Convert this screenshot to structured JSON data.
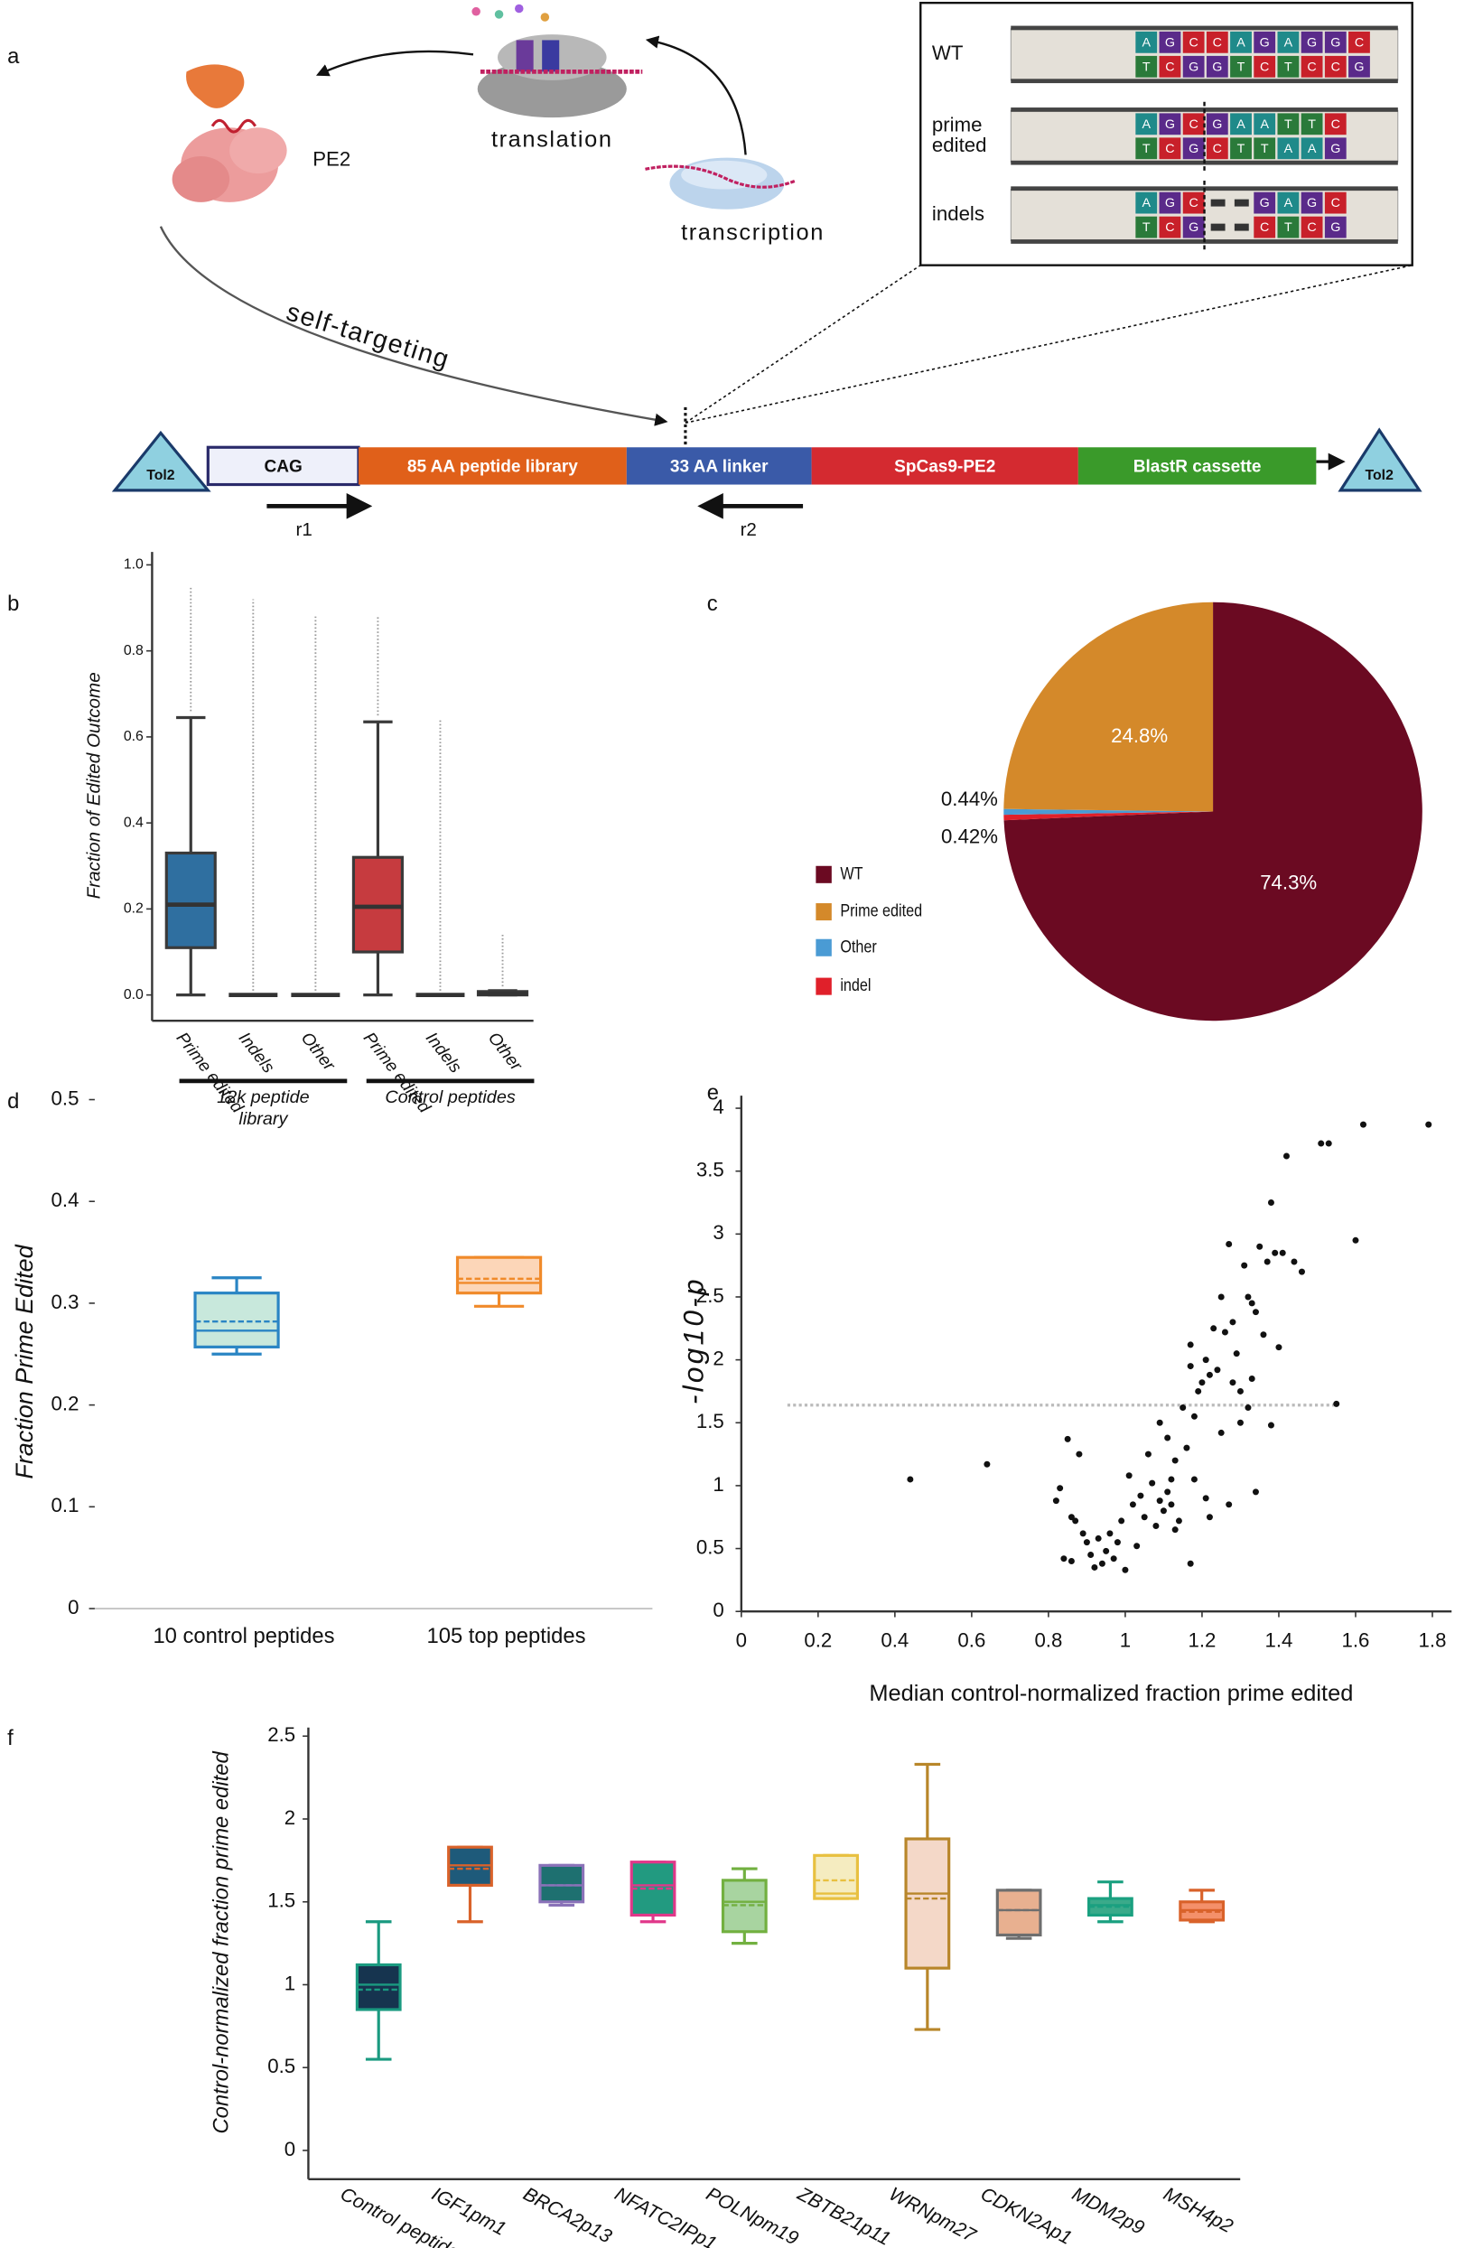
{
  "panel_labels": [
    "a",
    "b",
    "c",
    "d",
    "e",
    "f"
  ],
  "diagram": {
    "translation": "translation",
    "transcription": "transcription",
    "pe2": "PE2",
    "self_targeting": "self-targeting",
    "inset": {
      "base_colors": {
        "A": "#1f8a8a",
        "G": "#5a2a8a",
        "C": "#c8202a",
        "T": "#2a7a3a"
      },
      "rows": [
        {
          "label": [
            "WT"
          ],
          "top": [
            "A",
            "G",
            "C",
            "C",
            "A",
            "G",
            "A",
            "G",
            "G",
            "C"
          ],
          "bottom": [
            "T",
            "C",
            "G",
            "G",
            "T",
            "C",
            "T",
            "C",
            "C",
            "G"
          ]
        },
        {
          "label": [
            "prime",
            "edited"
          ],
          "top": [
            "A",
            "G",
            "C",
            "G",
            "A",
            "A",
            "T",
            "T",
            "C"
          ],
          "bottom": [
            "T",
            "C",
            "G",
            "C",
            "T",
            "T",
            "A",
            "A",
            "G"
          ]
        },
        {
          "label": [
            "indels"
          ],
          "top": [
            "A",
            "G",
            "C",
            null,
            null,
            "G",
            "A",
            "G",
            "C"
          ],
          "bottom": [
            "T",
            "C",
            "G",
            null,
            null,
            "C",
            "T",
            "C",
            "G"
          ]
        }
      ]
    },
    "construct": {
      "left_end": "Tol2",
      "right_end": "Tol2",
      "segments": [
        {
          "label": "CAG",
          "color": "#eef0fa"
        },
        {
          "label": "85 AA peptide library",
          "color": "#e0601a"
        },
        {
          "label": "33 AA linker",
          "color": "#3a5aa8"
        },
        {
          "label": "SpCas9-PE2",
          "color": "#d42a30"
        },
        {
          "label": "BlastR cassette",
          "color": "#3a9a2a"
        }
      ],
      "primers": [
        "r1",
        "r2"
      ]
    }
  },
  "chart_data": [
    {
      "type": "box",
      "y_label": "Fraction of Edited Outcome",
      "categories": [
        "Prime edited",
        "Indels",
        "Other",
        "Prime edited",
        "Indels",
        "Other"
      ],
      "group_labels": [
        [
          "12k peptide",
          "library"
        ],
        [
          "Control peptides"
        ]
      ],
      "colors": [
        "#2f6fa0",
        "#ffffff",
        "#ffffff",
        "#c63b3f",
        "#ffffff",
        "#ffffff"
      ],
      "ylim": [
        -0.06,
        1.0
      ],
      "yticks": [
        {
          "value": 0,
          "label": "0.0"
        },
        0.2,
        0.4,
        0.6,
        0.8,
        {
          "value": 1,
          "label": "1.0"
        }
      ],
      "boxes": [
        {
          "low": 0,
          "q1": 0.11,
          "median": 0.21,
          "q3": 0.33,
          "high": 0.645,
          "outliers": [
            0.66,
            0.95
          ]
        },
        {
          "low": 0,
          "q1": 0,
          "median": 0,
          "q3": 0,
          "high": 0,
          "outliers": [
            0.01,
            0.92
          ]
        },
        {
          "low": 0,
          "q1": 0,
          "median": 0,
          "q3": 0,
          "high": 0,
          "outliers": [
            0.01,
            0.88
          ]
        },
        {
          "low": 0,
          "q1": 0.1,
          "median": 0.205,
          "q3": 0.32,
          "high": 0.635,
          "outliers": [
            0.65,
            0.88
          ]
        },
        {
          "low": 0,
          "q1": 0,
          "median": 0,
          "q3": 0,
          "high": 0,
          "outliers": [
            0.01,
            0.64
          ]
        },
        {
          "low": 0,
          "q1": 0,
          "median": 0.003,
          "q3": 0.008,
          "high": 0.01,
          "outliers": [
            0.02,
            0.14
          ]
        }
      ]
    },
    {
      "type": "pie",
      "categories": [
        "WT",
        "Prime edited",
        "Other",
        "indel"
      ],
      "values": [
        74.3,
        24.8,
        0.44,
        0.42
      ],
      "value_labels": [
        "74.3%",
        "24.8%",
        "0.44%",
        "0.42%"
      ],
      "colors": [
        "#6b0a22",
        "#d4892a",
        "#4a9bd4",
        "#e0202a"
      ]
    },
    {
      "type": "box",
      "y_label": "Fraction Prime Edited",
      "categories": [
        "10 control peptides",
        "105 top peptides"
      ],
      "colors": [
        "#2a85c4",
        "#f08a2a"
      ],
      "fills": [
        "#c8e8dc",
        "#fcd6b8"
      ],
      "ylim": [
        0,
        0.5
      ],
      "yticks": [
        0,
        0.1,
        0.2,
        0.3,
        0.4,
        0.5
      ],
      "boxes": [
        {
          "low": 0.25,
          "q1": 0.257,
          "median": 0.273,
          "mean": 0.282,
          "q3": 0.31,
          "high": 0.325
        },
        {
          "low": 0.297,
          "q1": 0.31,
          "median": 0.32,
          "mean": 0.324,
          "q3": 0.345,
          "high": 0.345
        }
      ]
    },
    {
      "type": "scatter",
      "x_label": "Median control-normalized fraction prime edited",
      "y_label": "-log10-p",
      "color": "#111111",
      "xlim": [
        0,
        1.85
      ],
      "ylim": [
        0,
        4.1
      ],
      "xticks": [
        0,
        0.2,
        0.4,
        0.6,
        0.8,
        1,
        1.2,
        1.4,
        1.6,
        1.8
      ],
      "yticks": [
        0,
        0.5,
        1,
        1.5,
        2,
        2.5,
        3,
        3.5,
        4
      ],
      "hline": {
        "y": 1.64,
        "x": [
          0.12,
          1.55
        ],
        "color": "#bbbbbb"
      },
      "x": [
        0.44,
        0.64,
        0.82,
        0.83,
        0.84,
        0.86,
        0.85,
        0.86,
        0.87,
        0.88,
        0.89,
        0.9,
        0.91,
        0.92,
        0.93,
        0.94,
        0.95,
        0.96,
        0.97,
        0.98,
        0.99,
        1.0,
        1.01,
        1.02,
        1.03,
        1.04,
        1.05,
        1.06,
        1.07,
        1.08,
        1.09,
        1.1,
        1.11,
        1.12,
        1.13,
        1.14,
        1.15,
        1.16,
        1.17,
        1.17,
        1.18,
        1.19,
        1.2,
        1.21,
        1.22,
        1.23,
        1.24,
        1.25,
        1.26,
        1.27,
        1.28,
        1.29,
        1.3,
        1.31,
        1.32,
        1.33,
        1.33,
        1.34,
        1.35,
        1.36,
        1.37,
        1.38,
        1.38,
        1.39,
        1.4,
        1.41,
        1.42,
        1.44,
        1.46,
        1.51,
        1.53,
        1.55,
        1.6,
        1.62,
        1.79,
        1.22,
        1.25,
        1.3,
        1.34,
        1.13,
        1.18,
        1.21,
        1.17,
        1.27,
        1.32,
        1.28,
        1.09,
        1.11,
        1.12
      ],
      "values": [
        1.05,
        1.17,
        0.88,
        0.98,
        0.42,
        0.75,
        1.37,
        0.4,
        0.72,
        1.25,
        0.62,
        0.55,
        0.45,
        0.35,
        0.58,
        0.38,
        0.48,
        0.62,
        0.42,
        0.55,
        0.72,
        0.33,
        1.08,
        0.85,
        0.52,
        0.92,
        0.75,
        1.25,
        1.02,
        0.68,
        1.5,
        0.8,
        1.38,
        0.85,
        1.2,
        0.72,
        1.62,
        1.3,
        1.95,
        2.12,
        1.55,
        1.75,
        1.82,
        2.0,
        1.88,
        2.25,
        1.92,
        2.5,
        2.22,
        0.85,
        2.3,
        2.05,
        1.75,
        2.75,
        1.62,
        2.45,
        1.85,
        2.38,
        2.9,
        2.2,
        2.78,
        3.25,
        1.48,
        2.85,
        2.1,
        2.85,
        3.62,
        2.78,
        2.7,
        3.72,
        3.72,
        1.65,
        2.95,
        3.87,
        3.87,
        0.75,
        1.42,
        1.5,
        0.95,
        0.65,
        1.05,
        0.9,
        0.38,
        2.92,
        2.5,
        1.82,
        0.88,
        0.95,
        1.05
      ]
    },
    {
      "type": "box",
      "y_label": "Control-normalized fraction prime edited",
      "categories": [
        "Control peptides",
        "IGF1pm1",
        "BRCA2p13",
        "NFATC2IPp1",
        "POLNpm19",
        "ZBTB21p11",
        "WRNpm27",
        "CDKN2Ap1",
        "MDM2p9",
        "MSH4p2"
      ],
      "colors": [
        "#1a9a80",
        "#d9622a",
        "#8a72b8",
        "#e0388a",
        "#72b040",
        "#e8c040",
        "#b8862a",
        "#6e6e6e",
        "#1aa080",
        "#d9622a"
      ],
      "fills": [
        "#16344f",
        "#1e5a7a",
        "#1e7070",
        "#229a80",
        "#a8d4a0",
        "#f5ecc0",
        "#f4d8c8",
        "#e8b090",
        "#3aaa8a",
        "#f4906a"
      ],
      "ylim": [
        -0.17,
        2.6
      ],
      "yticks": [
        0,
        0.5,
        1,
        1.5,
        2,
        2.5
      ],
      "boxes": [
        {
          "low": 0.55,
          "q1": 0.85,
          "median": 1.0,
          "mean": 0.97,
          "q3": 1.12,
          "high": 1.38
        },
        {
          "low": 1.38,
          "q1": 1.6,
          "median": 1.72,
          "mean": 1.7,
          "q3": 1.83,
          "high": 1.83
        },
        {
          "low": 1.48,
          "q1": 1.5,
          "median": 1.6,
          "mean": 1.6,
          "q3": 1.72,
          "high": 1.72
        },
        {
          "low": 1.38,
          "q1": 1.42,
          "median": 1.6,
          "mean": 1.58,
          "q3": 1.74,
          "high": 1.74
        },
        {
          "low": 1.25,
          "q1": 1.32,
          "median": 1.5,
          "mean": 1.48,
          "q3": 1.63,
          "high": 1.7
        },
        {
          "low": 1.52,
          "q1": 1.52,
          "median": 1.55,
          "mean": 1.63,
          "q3": 1.78,
          "high": 1.78
        },
        {
          "low": 0.73,
          "q1": 1.1,
          "median": 1.55,
          "mean": 1.52,
          "q3": 1.88,
          "high": 2.33
        },
        {
          "low": 1.28,
          "q1": 1.3,
          "median": 1.45,
          "mean": 1.45,
          "q3": 1.57,
          "high": 1.57
        },
        {
          "low": 1.38,
          "q1": 1.42,
          "median": 1.48,
          "mean": 1.47,
          "q3": 1.52,
          "high": 1.62
        },
        {
          "low": 1.38,
          "q1": 1.39,
          "median": 1.45,
          "mean": 1.44,
          "q3": 1.5,
          "high": 1.57
        }
      ]
    }
  ]
}
